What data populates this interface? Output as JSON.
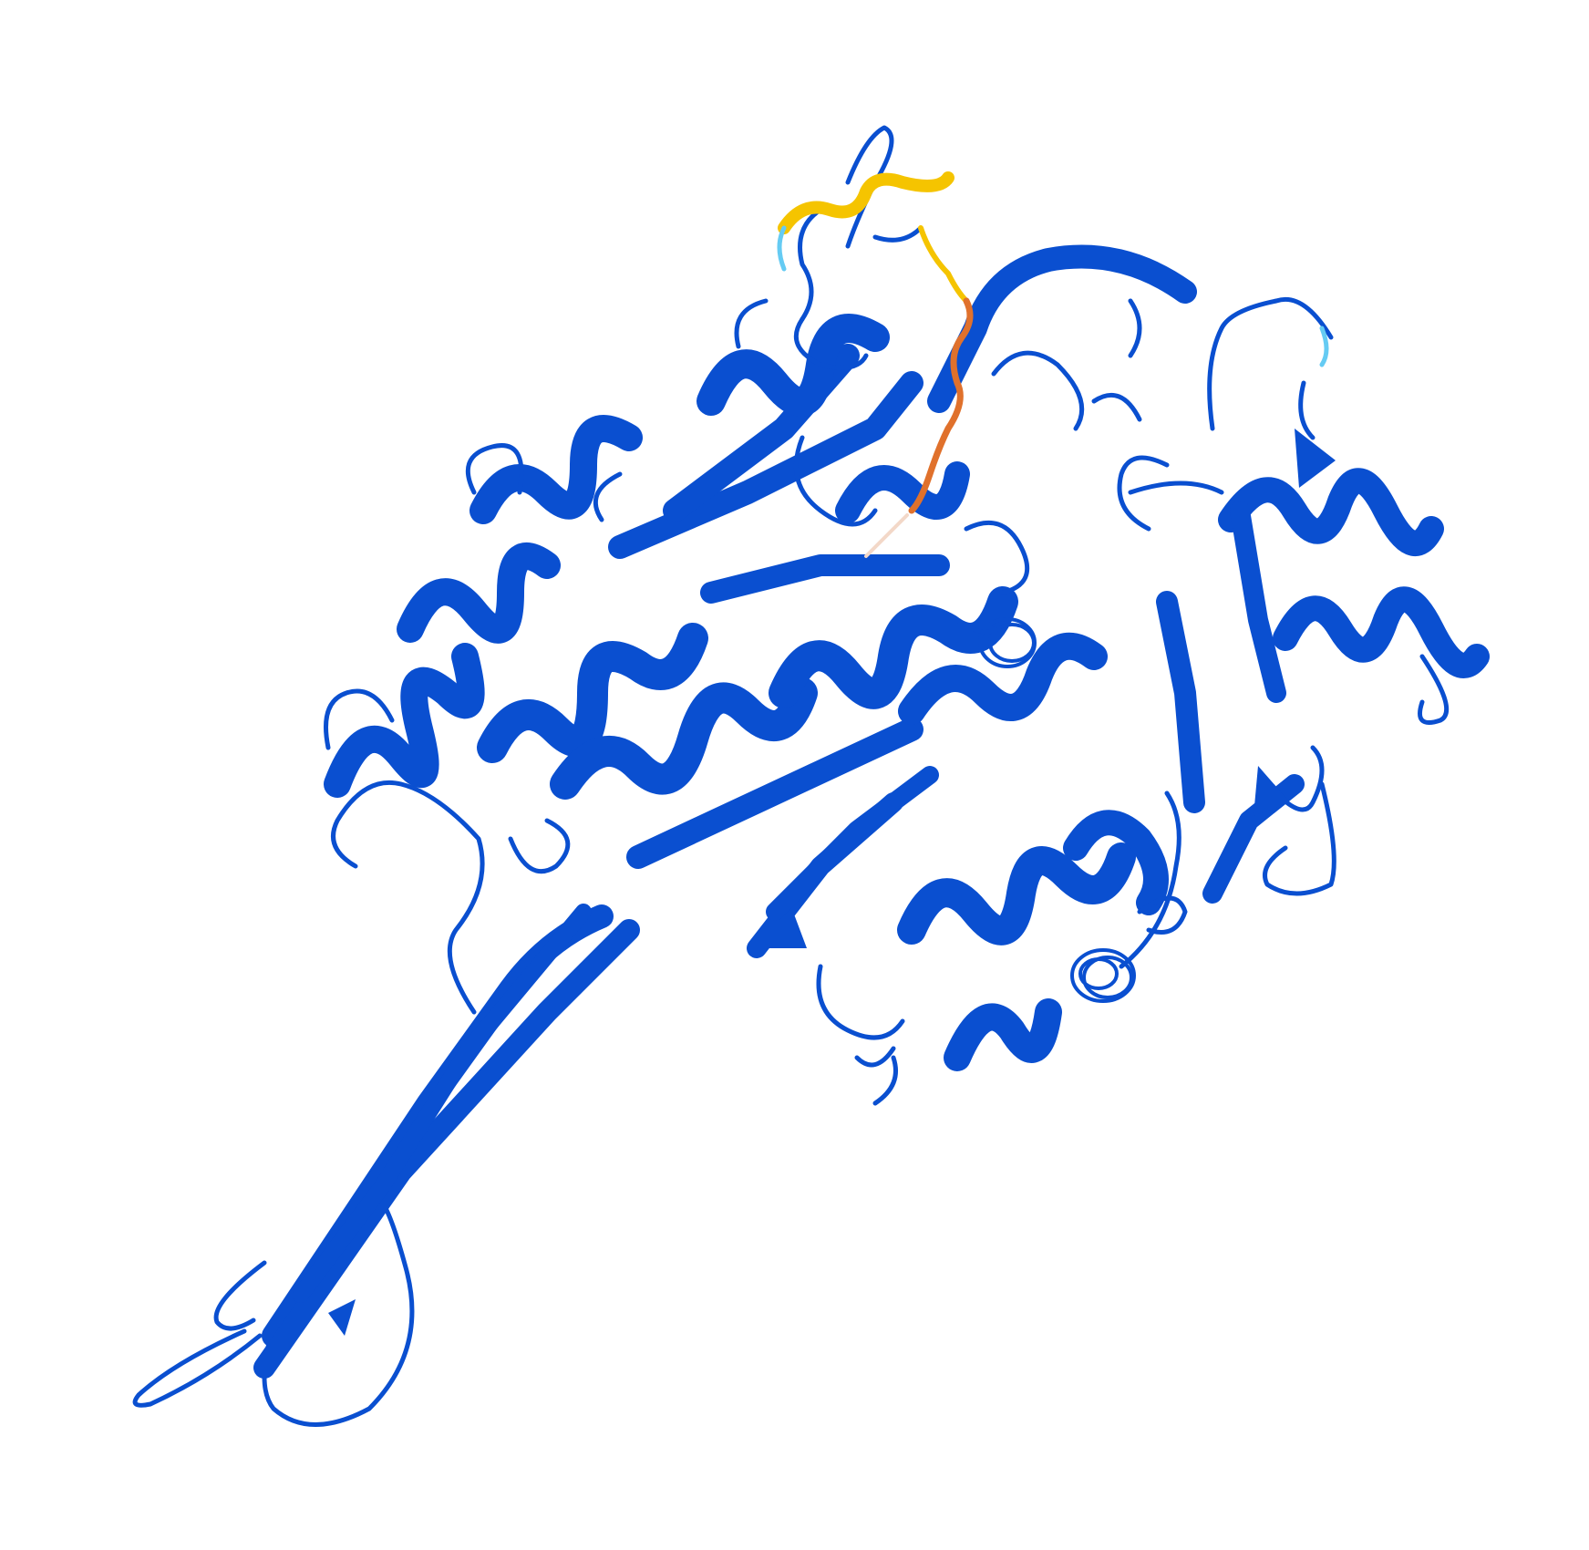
{
  "image": {
    "subject": "protein-ribbon-structure",
    "background_color": "#ffffff",
    "colors": {
      "very_high_confidence": "#0a4fd0",
      "confident": "#65cbf3",
      "low_confidence": "#f5c400",
      "very_low_confidence": "#e0712c",
      "faint": "#f3d8c8"
    }
  }
}
